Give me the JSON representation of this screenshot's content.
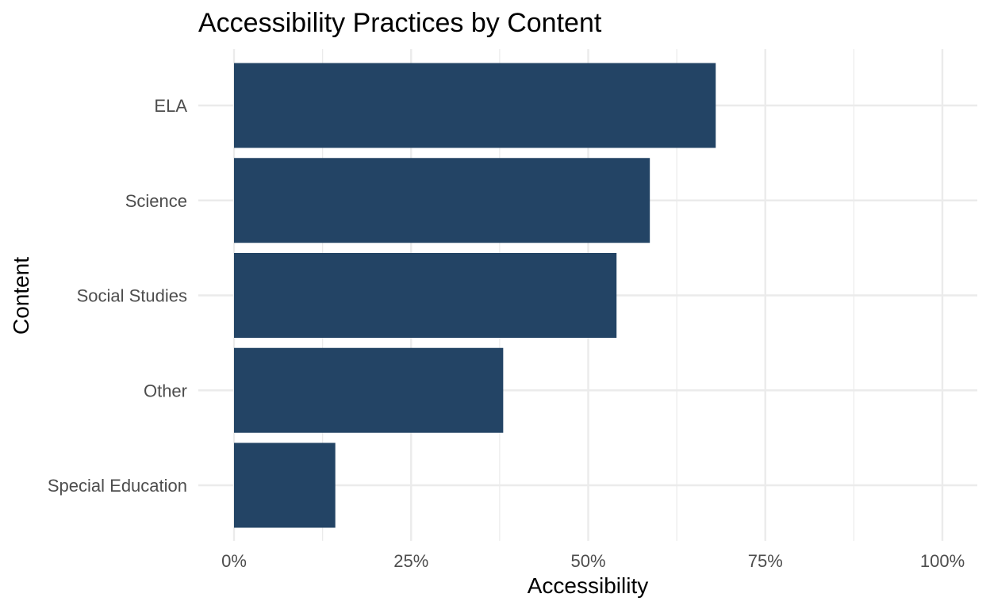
{
  "chart_data": {
    "type": "bar",
    "orientation": "horizontal",
    "title": "Accessibility Practices by Content",
    "xlabel": "Accessibility",
    "ylabel": "Content",
    "categories": [
      "ELA",
      "Science",
      "Social Studies",
      "Other",
      "Special Education"
    ],
    "values": [
      0.68,
      0.587,
      0.54,
      0.38,
      0.143
    ],
    "xlim": [
      0,
      1
    ],
    "x_ticks": [
      0,
      0.25,
      0.5,
      0.75,
      1
    ],
    "x_tick_labels": [
      "0%",
      "25%",
      "50%",
      "75%",
      "100%"
    ],
    "grid": true,
    "bar_color": "#234465",
    "grid_color": "#ebebeb"
  }
}
